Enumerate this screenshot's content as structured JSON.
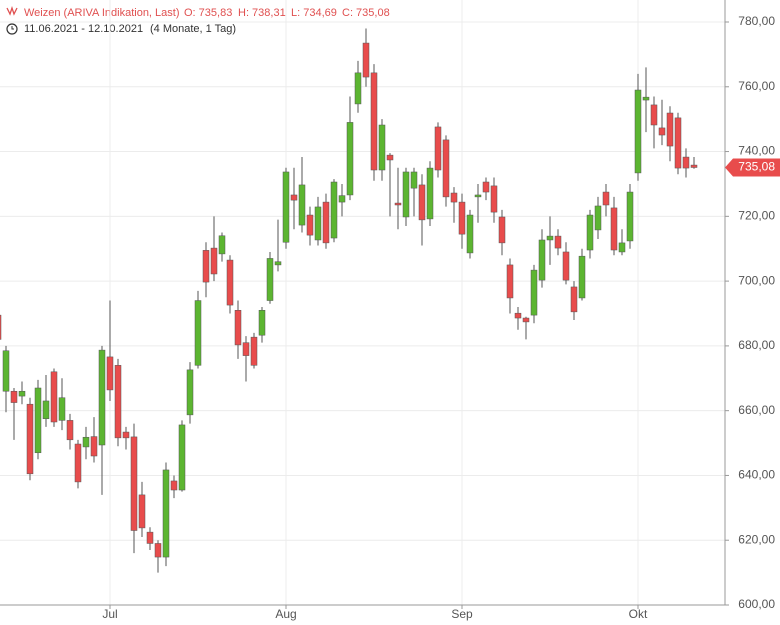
{
  "chart_data": {
    "type": "candlestick",
    "title": "Weizen (ARIVA Indikation, Last)",
    "stats": [
      "O: 735,83",
      "H: 738,31",
      "L: 734,69",
      "C: 735,08"
    ],
    "date_range": "11.06.2021 - 12.10.2021",
    "period": "(4 Monate, 1 Tag)",
    "categories": [
      null,
      null,
      null,
      null,
      null,
      null,
      null,
      null,
      null,
      null,
      null,
      null,
      null,
      null,
      "Jul",
      null,
      null,
      null,
      null,
      null,
      null,
      null,
      null,
      null,
      null,
      null,
      null,
      null,
      null,
      null,
      null,
      null,
      null,
      null,
      null,
      null,
      "Aug",
      null,
      null,
      null,
      null,
      null,
      null,
      null,
      null,
      null,
      null,
      null,
      null,
      null,
      null,
      null,
      null,
      null,
      null,
      null,
      null,
      null,
      "Sep",
      null,
      null,
      null,
      null,
      null,
      null,
      null,
      null,
      null,
      null,
      null,
      null,
      null,
      null,
      null,
      null,
      null,
      null,
      null,
      null,
      null,
      "Okt",
      null,
      null,
      null,
      null,
      null,
      null,
      null
    ],
    "open": [
      689.5,
      666,
      666,
      664.5,
      662,
      647,
      657.5,
      672,
      657,
      657,
      649.7,
      648.8,
      652,
      649.4,
      676.6,
      674,
      653.4,
      651.9,
      634,
      622.5,
      619,
      614.8,
      638.3,
      635.5,
      658.7,
      674,
      709.5,
      710.2,
      708.4,
      706.5,
      691,
      681,
      682.7,
      683.3,
      694,
      705,
      712,
      726.6,
      717.3,
      720.4,
      712.7,
      724.4,
      713.3,
      724.4,
      726.6,
      754.7,
      773.5,
      764.3,
      734.3,
      738.9,
      724.1,
      719.8,
      728.7,
      729.7,
      719.2,
      747.6,
      743.6,
      727.2,
      724.4,
      708.7,
      726,
      730.6,
      729.4,
      719.8,
      705,
      690.1,
      688.6,
      689.5,
      700.3,
      712.7,
      713.9,
      709,
      698.2,
      694.8,
      709.6,
      715.8,
      727.5,
      722.6,
      709,
      712.4,
      733.4,
      755.9,
      754.4,
      747.3,
      751.9,
      750.4,
      738.3,
      735.83
    ],
    "high": [
      690,
      680,
      667,
      669,
      664,
      669.5,
      671,
      673,
      670,
      659,
      651,
      655,
      658,
      680,
      694,
      676,
      655,
      656,
      638,
      624,
      620,
      644,
      640,
      657,
      675,
      697,
      712,
      720,
      715,
      708,
      694,
      683,
      684,
      692,
      709,
      719,
      735,
      735,
      738.3,
      723,
      726,
      727,
      731.5,
      730,
      757,
      768,
      778,
      767,
      750,
      739.5,
      735,
      735,
      735,
      733,
      737,
      749,
      745,
      729,
      727,
      722,
      730,
      732,
      732,
      722,
      707,
      692,
      689,
      705,
      716,
      720,
      716,
      712,
      700,
      710,
      722,
      726,
      730,
      726,
      716,
      730,
      764,
      766,
      757,
      756,
      754,
      752,
      741,
      738.31
    ],
    "low": [
      681,
      659.5,
      651,
      662,
      638.5,
      645,
      655,
      655,
      654,
      648,
      636,
      645,
      644,
      634,
      663,
      649,
      648,
      616,
      621,
      617,
      610,
      612,
      633,
      635,
      656,
      673,
      695,
      700,
      706,
      690,
      676,
      669,
      673,
      681,
      693,
      703,
      710,
      716,
      715,
      711,
      711,
      710,
      712,
      720,
      725,
      752,
      760,
      731,
      731,
      720,
      716,
      717,
      720,
      711,
      717,
      732,
      723,
      718,
      710,
      707,
      718,
      725,
      718,
      708,
      690,
      685,
      682,
      687,
      698,
      705,
      708,
      699,
      688,
      694,
      707,
      713,
      720,
      708,
      708,
      710,
      731,
      746,
      741,
      742,
      737,
      733,
      732,
      734.69
    ],
    "close": [
      682,
      678.5,
      662.5,
      666,
      640.5,
      667,
      663,
      656.5,
      664,
      651,
      638,
      651.8,
      646,
      678.7,
      666.4,
      651.6,
      651.6,
      623,
      623.8,
      619,
      614.8,
      641.7,
      635.5,
      655.6,
      672.6,
      694,
      699.7,
      702.2,
      714,
      692.6,
      680.3,
      677,
      674,
      691,
      707,
      706,
      733.7,
      725,
      729.7,
      714.2,
      722.9,
      711.8,
      730.6,
      726.4,
      749,
      764.3,
      763,
      734.3,
      748.2,
      737.4,
      723.5,
      733.7,
      733.7,
      718.9,
      734.9,
      734.3,
      726,
      724.4,
      714.5,
      720.4,
      726.6,
      727.5,
      721.3,
      711.8,
      694.8,
      688.6,
      687.4,
      703.4,
      712.7,
      713.9,
      710.2,
      700.3,
      690.5,
      707.7,
      720.4,
      723.2,
      723.5,
      709.6,
      711.8,
      727.5,
      759,
      756.8,
      748.2,
      745.1,
      741.7,
      734.9,
      734.9,
      735.08
    ],
    "up_color": "#5cb531",
    "down_color": "#e84c4c",
    "ylim": [
      600,
      780
    ],
    "yticks": [
      {
        "value": 600,
        "label": "600,00"
      },
      {
        "value": 620,
        "label": "620,00"
      },
      {
        "value": 640,
        "label": "640,00"
      },
      {
        "value": 660,
        "label": "660,00"
      },
      {
        "value": 680,
        "label": "680,00"
      },
      {
        "value": 700,
        "label": "700,00"
      },
      {
        "value": 720,
        "label": "720,00"
      },
      {
        "value": 740,
        "label": "740,00"
      },
      {
        "value": 760,
        "label": "760,00"
      },
      {
        "value": 780,
        "label": "780,00"
      }
    ],
    "last_price": {
      "value": 735.08,
      "label": "735,08"
    },
    "grid": true
  }
}
